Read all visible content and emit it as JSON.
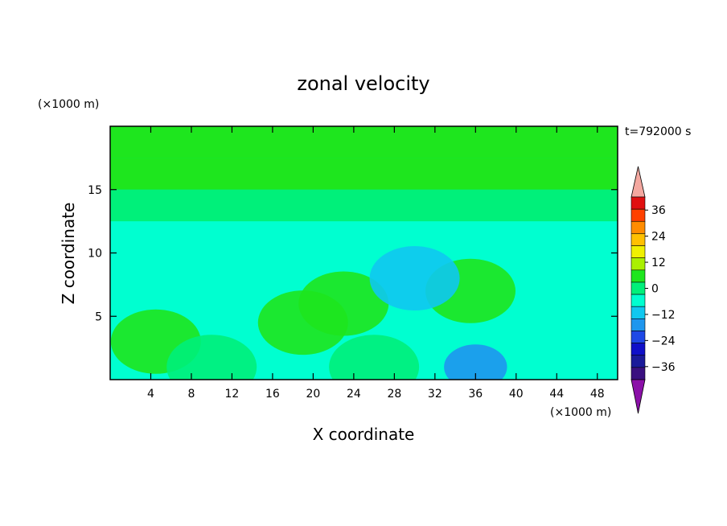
{
  "chart_data": {
    "type": "heatmap",
    "title": "zonal velocity",
    "xlabel": "X coordinate",
    "ylabel": "Z coordinate",
    "x_unit": "(×1000 m)",
    "y_unit": "(×1000 m)",
    "time_label": "t=792000 s",
    "xlim": [
      0,
      50
    ],
    "ylim": [
      0,
      20
    ],
    "x_ticks": [
      4,
      8,
      12,
      16,
      20,
      24,
      28,
      32,
      36,
      40,
      44,
      48
    ],
    "y_ticks": [
      5,
      10,
      15
    ],
    "colorbar": {
      "levels": [
        -42,
        -36,
        -30,
        -24,
        -18,
        -12,
        -6,
        0,
        6,
        12,
        18,
        24,
        30,
        36,
        42
      ],
      "tick_labels": [
        "36",
        "24",
        "12",
        "0",
        "−12",
        "−24",
        "−36"
      ],
      "tick_values": [
        36,
        24,
        12,
        0,
        -12,
        -24,
        -36
      ],
      "colors": [
        "#3a1080",
        "#1a1a9a",
        "#1010c8",
        "#1e48e6",
        "#1e96ee",
        "#10c8f0",
        "#00ffd0",
        "#00f07a",
        "#1ee61e",
        "#aaf000",
        "#f0f000",
        "#ffc000",
        "#ff8c00",
        "#ff4000",
        "#e01010"
      ],
      "under_color": "#8b10a8",
      "over_color": "#f4a8a0"
    },
    "field": {
      "description_bands": [
        {
          "z_range": [
            17.5,
            20
          ],
          "approx_value": 10
        },
        {
          "z_range": [
            15,
            17.5
          ],
          "approx_value": 7
        },
        {
          "z_range": [
            12.5,
            15
          ],
          "approx_value": 2
        },
        {
          "z_range": [
            0,
            12.5
          ],
          "approx_value": -4
        }
      ],
      "features": [
        {
          "x": 35.5,
          "z": 7,
          "value": 9
        },
        {
          "x": 4.5,
          "z": 3,
          "value": 6
        },
        {
          "x": 19,
          "z": 4.5,
          "value": 6
        },
        {
          "x": 23,
          "z": 6,
          "value": 6
        },
        {
          "x": 36,
          "z": 1,
          "value": -18
        },
        {
          "x": 30,
          "z": 8,
          "value": -8
        },
        {
          "x": 10,
          "z": 1,
          "value": 5
        },
        {
          "x": 26,
          "z": 1,
          "value": 4
        }
      ]
    }
  }
}
